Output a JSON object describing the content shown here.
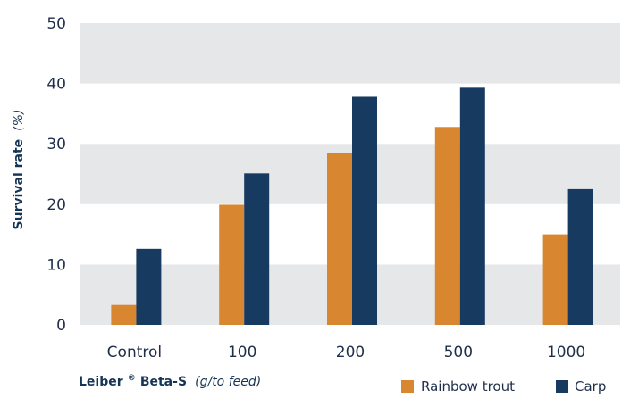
{
  "chart_data": {
    "type": "bar",
    "categories": [
      "Control",
      "100",
      "200",
      "500",
      "1000"
    ],
    "series": [
      {
        "name": "Rainbow trout",
        "values": [
          3.3,
          19.9,
          28.5,
          32.8,
          15.0
        ],
        "color": "#d8862f"
      },
      {
        "name": "Carp",
        "values": [
          12.6,
          25.1,
          37.8,
          39.3,
          22.5
        ],
        "color": "#173a60"
      }
    ],
    "ylim": [
      0,
      50
    ],
    "yticks": [
      "0",
      "10",
      "20",
      "30",
      "40",
      "50"
    ],
    "ylabel": {
      "main": "Survival rate",
      "unit": "(%)"
    },
    "xlabel": {
      "main": "Leiber",
      "reg": "®",
      "product": " Beta-S",
      "unit": "(g/to feed)"
    },
    "legend_position": "bottom-right",
    "band_colors": [
      "#e6e7e9",
      "#ffffff"
    ]
  }
}
